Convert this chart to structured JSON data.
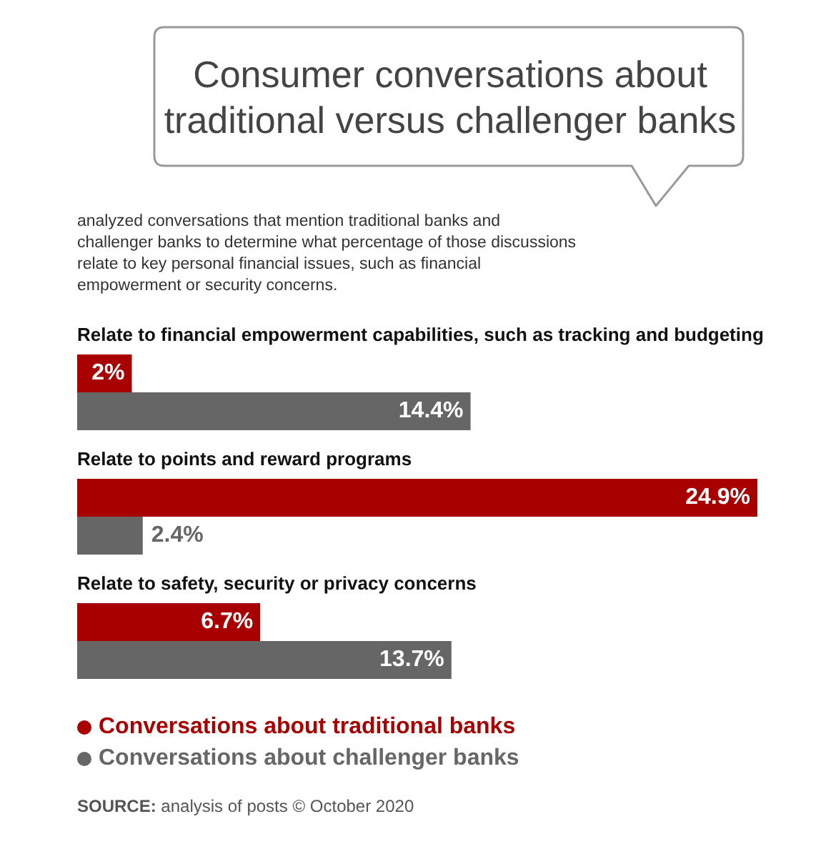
{
  "chart_data": {
    "type": "bar",
    "orientation": "horizontal",
    "title": "Consumer conversations about traditional versus challenger banks",
    "subtitle": "analyzed conversations that mention traditional banks and challenger banks to determine what percentage of those discussions relate to key personal financial issues, such as financial empowerment or security concerns.",
    "categories": [
      "Relate to financial empowerment capabilities, such as tracking and budgeting",
      "Relate to points and reward programs",
      "Relate to safety, security or privacy concerns"
    ],
    "series": [
      {
        "name": "Conversations about traditional banks",
        "color": "#a80000",
        "values": [
          2,
          24.9,
          6.7
        ],
        "value_labels": [
          "2%",
          "24.9%",
          "6.7%"
        ]
      },
      {
        "name": "Conversations about challenger banks",
        "color": "#666666",
        "values": [
          14.4,
          2.4,
          13.7
        ],
        "value_labels": [
          "14.4%",
          "2.4%",
          "13.7%"
        ]
      }
    ],
    "legend": "bottom",
    "tick_labels": false,
    "annotations": [
      "SOURCE: analysis of posts © October 2020"
    ]
  }
}
